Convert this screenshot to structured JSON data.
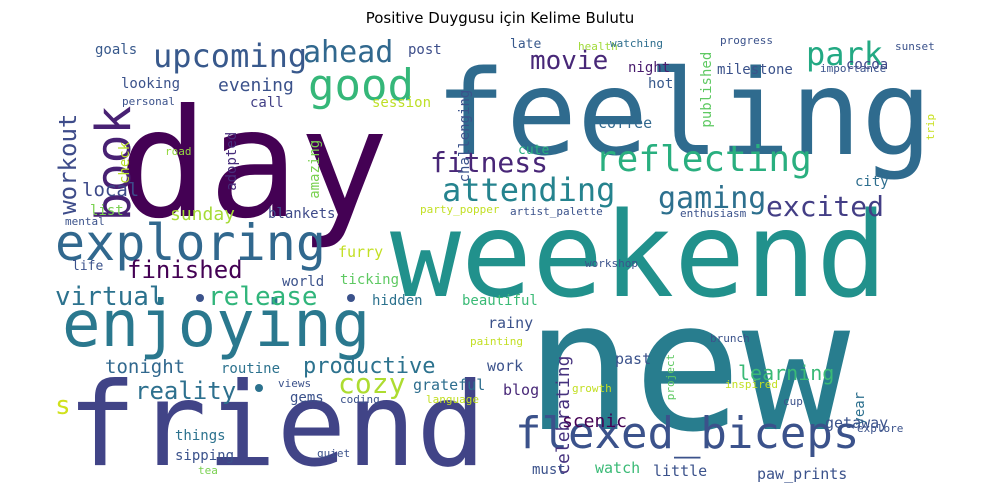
{
  "title": "Positive Duygusu için Kelime Bulutu",
  "palette": "viridis",
  "words": [
    {
      "text": "day",
      "color": "#440154"
    },
    {
      "text": "feeling",
      "color": "#2f6b8e"
    },
    {
      "text": "weekend",
      "color": "#21918c"
    },
    {
      "text": "new",
      "color": "#287d8e"
    },
    {
      "text": "friend",
      "color": "#414487"
    },
    {
      "text": "enjoying",
      "color": "#2a788e"
    },
    {
      "text": "exploring",
      "color": "#31688e"
    },
    {
      "text": "flexed_biceps",
      "color": "#3b528b"
    },
    {
      "text": "book",
      "color": "#482173"
    },
    {
      "text": "upcoming",
      "color": "#38598c"
    },
    {
      "text": "good",
      "color": "#35b779"
    },
    {
      "text": "ahead",
      "color": "#31688e"
    },
    {
      "text": "reflecting",
      "color": "#29af7f"
    },
    {
      "text": "attending",
      "color": "#25838e"
    },
    {
      "text": "fitness",
      "color": "#482677"
    },
    {
      "text": "gaming",
      "color": "#2d708e"
    },
    {
      "text": "excited",
      "color": "#433e85"
    },
    {
      "text": "park",
      "color": "#23a983"
    },
    {
      "text": "movie",
      "color": "#482878"
    },
    {
      "text": "finished",
      "color": "#440154"
    },
    {
      "text": "virtual",
      "color": "#2c728e"
    },
    {
      "text": "release",
      "color": "#31b57b"
    },
    {
      "text": "workout",
      "color": "#3e4c8a"
    },
    {
      "text": "cozy",
      "color": "#addc30"
    },
    {
      "text": "productive",
      "color": "#2c728e"
    },
    {
      "text": "reality",
      "color": "#2d708e"
    },
    {
      "text": "celebrating",
      "color": "#46327e"
    },
    {
      "text": "learning",
      "color": "#3aba76"
    },
    {
      "text": "scenic",
      "color": "#440154"
    },
    {
      "text": "tonight",
      "color": "#31688e"
    },
    {
      "text": "local",
      "color": "#3e4a89"
    },
    {
      "text": "evening",
      "color": "#3b528b"
    },
    {
      "text": "s",
      "color": "#d0e11c"
    },
    {
      "text": "sunday",
      "color": "#a5db36"
    },
    {
      "text": "furry",
      "color": "#c2df23"
    },
    {
      "text": "grateful",
      "color": "#2e6e8e"
    },
    {
      "text": "rainy",
      "color": "#3b528b"
    },
    {
      "text": "coffee",
      "color": "#31688e"
    },
    {
      "text": "night",
      "color": "#481b6d"
    },
    {
      "text": "hot",
      "color": "#38598c"
    },
    {
      "text": "milestone",
      "color": "#3b528b"
    },
    {
      "text": "cocoa",
      "color": "#3f4788"
    },
    {
      "text": "city",
      "color": "#2e6e8e"
    },
    {
      "text": "year",
      "color": "#2d708e"
    },
    {
      "text": "getaway",
      "color": "#3b528b"
    },
    {
      "text": "blankets",
      "color": "#3e4a89"
    },
    {
      "text": "looking",
      "color": "#3b528b"
    },
    {
      "text": "goals",
      "color": "#38598c"
    },
    {
      "text": "call",
      "color": "#424086"
    },
    {
      "text": "session",
      "color": "#bddf26"
    },
    {
      "text": "post",
      "color": "#3d4e8a"
    },
    {
      "text": "late",
      "color": "#38598c"
    },
    {
      "text": "health",
      "color": "#a0da39"
    },
    {
      "text": "watching",
      "color": "#2e6e8e"
    },
    {
      "text": "progress",
      "color": "#3b528b"
    },
    {
      "text": "sunset",
      "color": "#3b528b"
    },
    {
      "text": "importance",
      "color": "#3b528b"
    },
    {
      "text": "personal",
      "color": "#3b528b"
    },
    {
      "text": "check",
      "color": "#b8de29"
    },
    {
      "text": "road",
      "color": "#95d840"
    },
    {
      "text": "adopted",
      "color": "#472d7b"
    },
    {
      "text": "amazing",
      "color": "#7ad151"
    },
    {
      "text": "challenging",
      "color": "#3b528b"
    },
    {
      "text": "cute",
      "color": "#2ab07f"
    },
    {
      "text": "published",
      "color": "#5ec962"
    },
    {
      "text": "trip",
      "color": "#c8e020"
    },
    {
      "text": "mental",
      "color": "#3b528b"
    },
    {
      "text": "list",
      "color": "#7ad151"
    },
    {
      "text": "life",
      "color": "#3b528b"
    },
    {
      "text": "world",
      "color": "#3b528b"
    },
    {
      "text": "ticking",
      "color": "#5ec962"
    },
    {
      "text": "hidden",
      "color": "#2c728e"
    },
    {
      "text": "beautiful",
      "color": "#3aba76"
    },
    {
      "text": "party_popper",
      "color": "#c2df23"
    },
    {
      "text": "artist_palette",
      "color": "#3b528b"
    },
    {
      "text": "enthusiasm",
      "color": "#3b528b"
    },
    {
      "text": "workshop",
      "color": "#3b528b"
    },
    {
      "text": "routine",
      "color": "#2c728e"
    },
    {
      "text": "work",
      "color": "#3b528b"
    },
    {
      "text": "past",
      "color": "#3b528b"
    },
    {
      "text": "blog",
      "color": "#482878"
    },
    {
      "text": "gems",
      "color": "#3b528b"
    },
    {
      "text": "coding",
      "color": "#3b528b"
    },
    {
      "text": "views",
      "color": "#3b528b"
    },
    {
      "text": "language",
      "color": "#c2df23"
    },
    {
      "text": "growth",
      "color": "#c2df23"
    },
    {
      "text": "inspired",
      "color": "#c2df23"
    },
    {
      "text": "painting",
      "color": "#c2df23"
    },
    {
      "text": "project",
      "color": "#5ec962"
    },
    {
      "text": "brunch",
      "color": "#3b528b"
    },
    {
      "text": "cup",
      "color": "#3b528b"
    },
    {
      "text": "explore",
      "color": "#3b528b"
    },
    {
      "text": "things",
      "color": "#2c728e"
    },
    {
      "text": "sipping",
      "color": "#3b528b"
    },
    {
      "text": "tea",
      "color": "#7ad151"
    },
    {
      "text": "quiet",
      "color": "#3b528b"
    },
    {
      "text": "must",
      "color": "#3b528b"
    },
    {
      "text": "watch",
      "color": "#3aba76"
    },
    {
      "text": "little",
      "color": "#3b528b"
    },
    {
      "text": "paw_prints",
      "color": "#3b528b"
    }
  ]
}
